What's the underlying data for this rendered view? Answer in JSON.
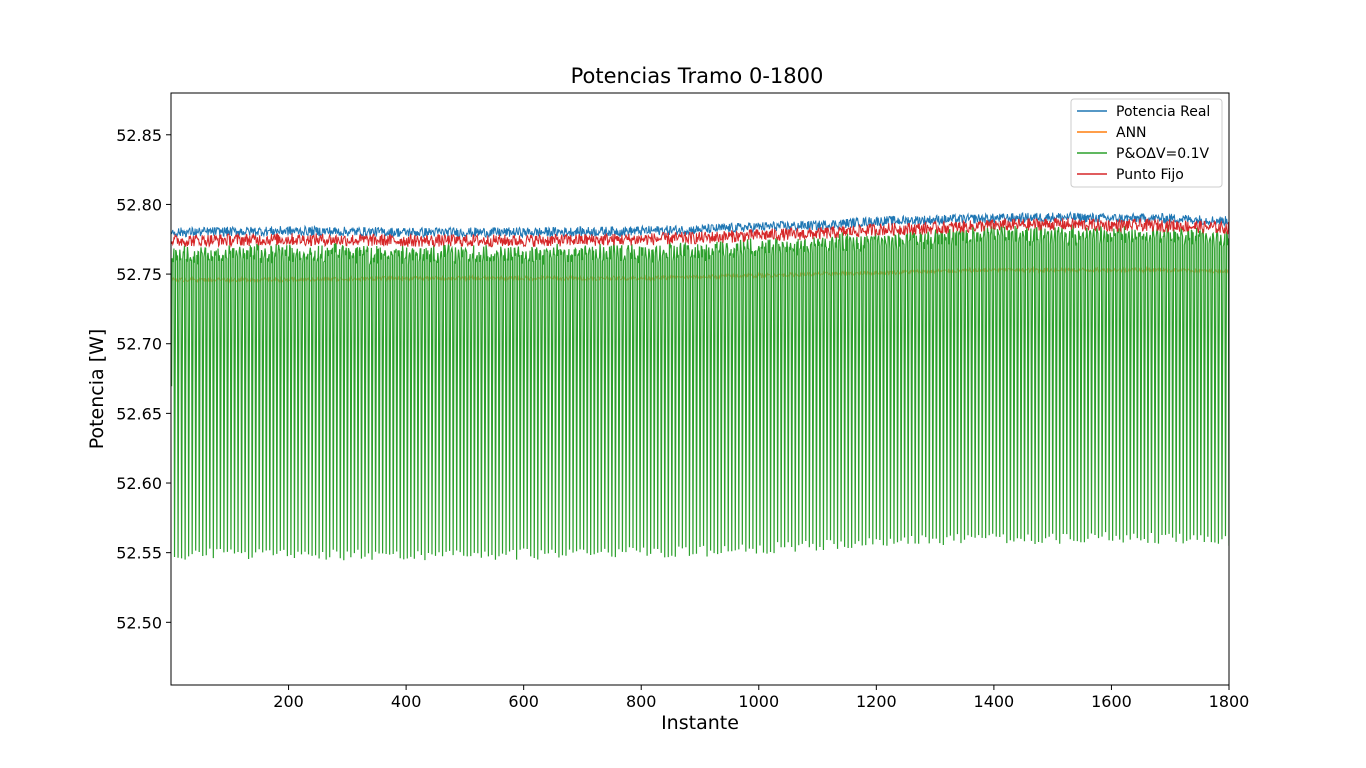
{
  "chart_data": {
    "type": "line",
    "title": "Potencias Tramo 0-1800",
    "xlabel": "Instante",
    "ylabel": "Potencia [W]",
    "xlim": [
      0,
      1800
    ],
    "ylim": [
      52.455,
      52.88
    ],
    "x_ticks": [
      200,
      400,
      600,
      800,
      1000,
      1200,
      1400,
      1600,
      1800
    ],
    "x_tick_labels": [
      "200",
      "400",
      "600",
      "800",
      "1000",
      "1200",
      "1400",
      "1600",
      "1800"
    ],
    "y_ticks": [
      52.5,
      52.55,
      52.6,
      52.65,
      52.7,
      52.75,
      52.8,
      52.85
    ],
    "y_tick_labels": [
      "52.50",
      "52.55",
      "52.60",
      "52.65",
      "52.70",
      "52.75",
      "52.80",
      "52.85"
    ],
    "grid": false,
    "legend_position": "top-right",
    "series": [
      {
        "name": "Potencia Real",
        "color": "#1f77b4",
        "approx_trend": {
          "x": [
            0,
            200,
            400,
            600,
            800,
            900,
            1000,
            1100,
            1200,
            1300,
            1400,
            1500,
            1600,
            1700,
            1800
          ],
          "y": [
            52.78,
            52.781,
            52.78,
            52.78,
            52.781,
            52.782,
            52.784,
            52.785,
            52.788,
            52.789,
            52.79,
            52.791,
            52.79,
            52.79,
            52.788
          ]
        }
      },
      {
        "name": "ANN",
        "color": "#ff7f0e",
        "approx_trend": {
          "x": [
            0,
            200,
            400,
            600,
            800,
            900,
            1000,
            1100,
            1200,
            1300,
            1400,
            1500,
            1600,
            1700,
            1800
          ],
          "y": [
            52.746,
            52.746,
            52.747,
            52.747,
            52.747,
            52.748,
            52.749,
            52.75,
            52.751,
            52.752,
            52.753,
            52.753,
            52.753,
            52.753,
            52.752
          ]
        }
      },
      {
        "name": "P&OΔV=0.1V",
        "color": "#2ca02c",
        "approx_trend": {
          "x": [
            0,
            200,
            400,
            600,
            800,
            900,
            1000,
            1100,
            1200,
            1300,
            1400,
            1500,
            1600,
            1700,
            1800
          ],
          "y_max": [
            52.772,
            52.773,
            52.772,
            52.772,
            52.773,
            52.775,
            52.777,
            52.779,
            52.782,
            52.784,
            52.786,
            52.786,
            52.786,
            52.786,
            52.784
          ],
          "y_min": [
            52.549,
            52.549,
            52.548,
            52.549,
            52.55,
            52.551,
            52.553,
            52.555,
            52.557,
            52.559,
            52.56,
            52.56,
            52.561,
            52.56,
            52.558
          ]
        }
      },
      {
        "name": "Punto Fijo",
        "color": "#d62728",
        "approx_trend": {
          "x": [
            0,
            200,
            400,
            600,
            800,
            900,
            1000,
            1100,
            1200,
            1300,
            1400,
            1500,
            1600,
            1700,
            1800
          ],
          "y": [
            52.774,
            52.775,
            52.774,
            52.774,
            52.775,
            52.776,
            52.778,
            52.779,
            52.782,
            52.783,
            52.785,
            52.786,
            52.785,
            52.785,
            52.783
          ]
        }
      }
    ]
  }
}
